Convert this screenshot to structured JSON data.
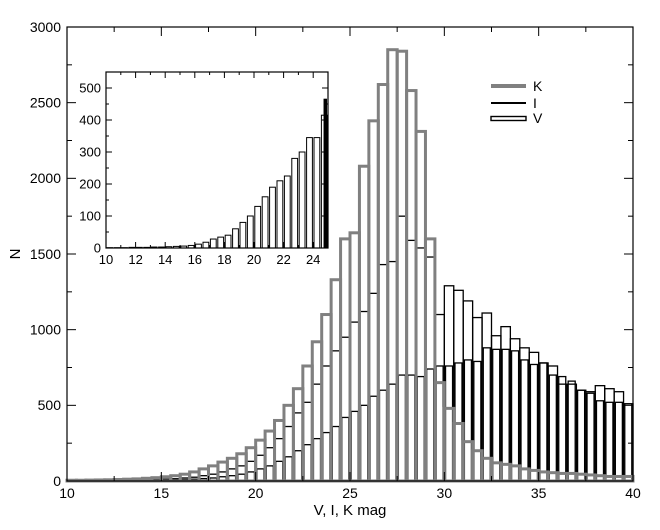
{
  "chart_data": [
    {
      "type": "bar",
      "panel": "main",
      "xlabel": "V, I, K mag",
      "ylabel": "N",
      "xlim": [
        10,
        40
      ],
      "ylim": [
        0,
        3000
      ],
      "x_ticks": [
        "10",
        "15",
        "20",
        "25",
        "30",
        "35",
        "40"
      ],
      "y_ticks": [
        "0",
        "500",
        "1000",
        "1500",
        "2000",
        "2500",
        "3000"
      ],
      "bin_width": 0.5,
      "bin_starts": [
        10,
        10.5,
        11,
        11.5,
        12,
        12.5,
        13,
        13.5,
        14,
        14.5,
        15,
        15.5,
        16,
        16.5,
        17,
        17.5,
        18,
        18.5,
        19,
        19.5,
        20,
        20.5,
        21,
        21.5,
        22,
        22.5,
        23,
        23.5,
        24,
        24.5,
        25,
        25.5,
        26,
        26.5,
        27,
        27.5,
        28,
        28.5,
        29,
        29.5,
        30,
        30.5,
        31,
        31.5,
        32,
        32.5,
        33,
        33.5,
        34,
        34.5,
        35,
        35.5,
        36,
        36.5,
        37,
        37.5,
        38,
        38.5,
        39,
        39.5
      ],
      "legend": {
        "placement": "top-right",
        "entries": [
          "K",
          "I",
          "V"
        ]
      },
      "series": [
        {
          "name": "K",
          "color": "#808080",
          "values": [
            5,
            5,
            6,
            7,
            8,
            10,
            12,
            14,
            18,
            22,
            28,
            35,
            45,
            60,
            80,
            100,
            125,
            150,
            180,
            220,
            270,
            330,
            400,
            500,
            610,
            760,
            920,
            1100,
            1330,
            1600,
            1640,
            2080,
            2380,
            2620,
            2850,
            2840,
            2580,
            2310,
            1600,
            650,
            480,
            380,
            260,
            200,
            150,
            120,
            110,
            100,
            80,
            70,
            60,
            55,
            50,
            50,
            45,
            40,
            35,
            30,
            30,
            30
          ]
        },
        {
          "name": "I",
          "color": "#000000",
          "values": [
            2,
            2,
            3,
            3,
            4,
            5,
            5,
            6,
            8,
            10,
            12,
            15,
            20,
            25,
            35,
            45,
            60,
            80,
            100,
            130,
            170,
            220,
            280,
            360,
            450,
            520,
            640,
            760,
            860,
            950,
            1050,
            1120,
            1240,
            1430,
            1450,
            1750,
            1590,
            1540,
            1480,
            1100,
            1290,
            1260,
            1190,
            1080,
            1110,
            960,
            1020,
            940,
            880,
            850,
            780,
            760,
            640,
            640,
            600,
            590,
            630,
            610,
            590,
            510
          ]
        },
        {
          "name": "V",
          "color": "#000000",
          "values": [
            1,
            1,
            1,
            2,
            2,
            2,
            3,
            3,
            4,
            5,
            6,
            8,
            10,
            12,
            16,
            20,
            28,
            35,
            45,
            60,
            80,
            100,
            130,
            160,
            200,
            240,
            280,
            320,
            360,
            420,
            460,
            500,
            560,
            600,
            640,
            700,
            700,
            690,
            740,
            760,
            760,
            780,
            800,
            790,
            880,
            870,
            870,
            860,
            800,
            770,
            780,
            700,
            690,
            660,
            600,
            580,
            530,
            520,
            520,
            510
          ]
        }
      ]
    },
    {
      "type": "bar",
      "panel": "inset",
      "xlim": [
        10,
        25
      ],
      "ylim": [
        0,
        550
      ],
      "x_ticks": [
        "10",
        "12",
        "14",
        "16",
        "18",
        "20",
        "22",
        "24"
      ],
      "y_ticks": [
        "0",
        "100",
        "200",
        "300",
        "400",
        "500"
      ],
      "bin_width": 0.5,
      "bin_starts": [
        10,
        10.5,
        11,
        11.5,
        12,
        12.5,
        13,
        13.5,
        14,
        14.5,
        15,
        15.5,
        16,
        16.5,
        17,
        17.5,
        18,
        18.5,
        19,
        19.5,
        20,
        20.5,
        21,
        21.5,
        22,
        22.5,
        23,
        23.5,
        24,
        24.5
      ],
      "series": [
        {
          "name": "V",
          "color": "#000000",
          "values": [
            1,
            1,
            1,
            2,
            2,
            2,
            3,
            3,
            4,
            5,
            6,
            8,
            12,
            18,
            28,
            34,
            40,
            60,
            80,
            100,
            130,
            160,
            190,
            210,
            225,
            280,
            300,
            345,
            345,
            415
          ]
        }
      ],
      "overflow_bar": {
        "x": 24.8,
        "value": 465
      }
    }
  ]
}
